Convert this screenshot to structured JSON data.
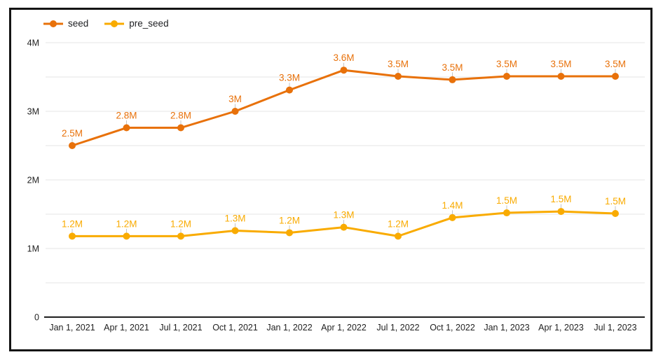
{
  "chart_data": {
    "type": "line",
    "title": "",
    "xlabel": "",
    "ylabel": "",
    "categories": [
      "Jan 1, 2021",
      "Apr 1, 2021",
      "Jul 1, 2021",
      "Oct 1, 2021",
      "Jan 1, 2022",
      "Apr 1, 2022",
      "Jul 1, 2022",
      "Oct 1, 2022",
      "Jan 1, 2023",
      "Apr 1, 2023",
      "Jul 1, 2023"
    ],
    "series": [
      {
        "name": "seed",
        "color": "#E8710A",
        "values": [
          2.5,
          2.76,
          2.76,
          3.0,
          3.31,
          3.6,
          3.51,
          3.46,
          3.51,
          3.51,
          3.51
        ],
        "point_labels": [
          "2.5M",
          "2.8M",
          "2.8M",
          "3M",
          "3.3M",
          "3.6M",
          "3.5M",
          "3.5M",
          "3.5M",
          "3.5M",
          "3.5M"
        ]
      },
      {
        "name": "pre_seed",
        "color": "#F9AB00",
        "values": [
          1.18,
          1.18,
          1.18,
          1.26,
          1.23,
          1.31,
          1.18,
          1.45,
          1.52,
          1.54,
          1.51
        ],
        "point_labels": [
          "1.2M",
          "1.2M",
          "1.2M",
          "1.3M",
          "1.2M",
          "1.3M",
          "1.2M",
          "1.4M",
          "1.5M",
          "1.5M",
          "1.5M"
        ]
      }
    ],
    "y_axis": {
      "range": [
        0,
        4
      ],
      "minor_step": 0.5,
      "ticks": [
        {
          "value": 0,
          "label": "0"
        },
        {
          "value": 1,
          "label": "1M"
        },
        {
          "value": 2,
          "label": "2M"
        },
        {
          "value": 3,
          "label": "3M"
        },
        {
          "value": 4,
          "label": "4M"
        }
      ]
    },
    "grid": true,
    "legend_position": "top-left"
  },
  "colors": {
    "background": "#FFFFFF",
    "frame_border": "#141414",
    "gridline": "#E4E4E4",
    "axis_line": "#1F1F1F",
    "tick_text": "#1F1F1F",
    "leader_line": "#C4C4C4"
  }
}
